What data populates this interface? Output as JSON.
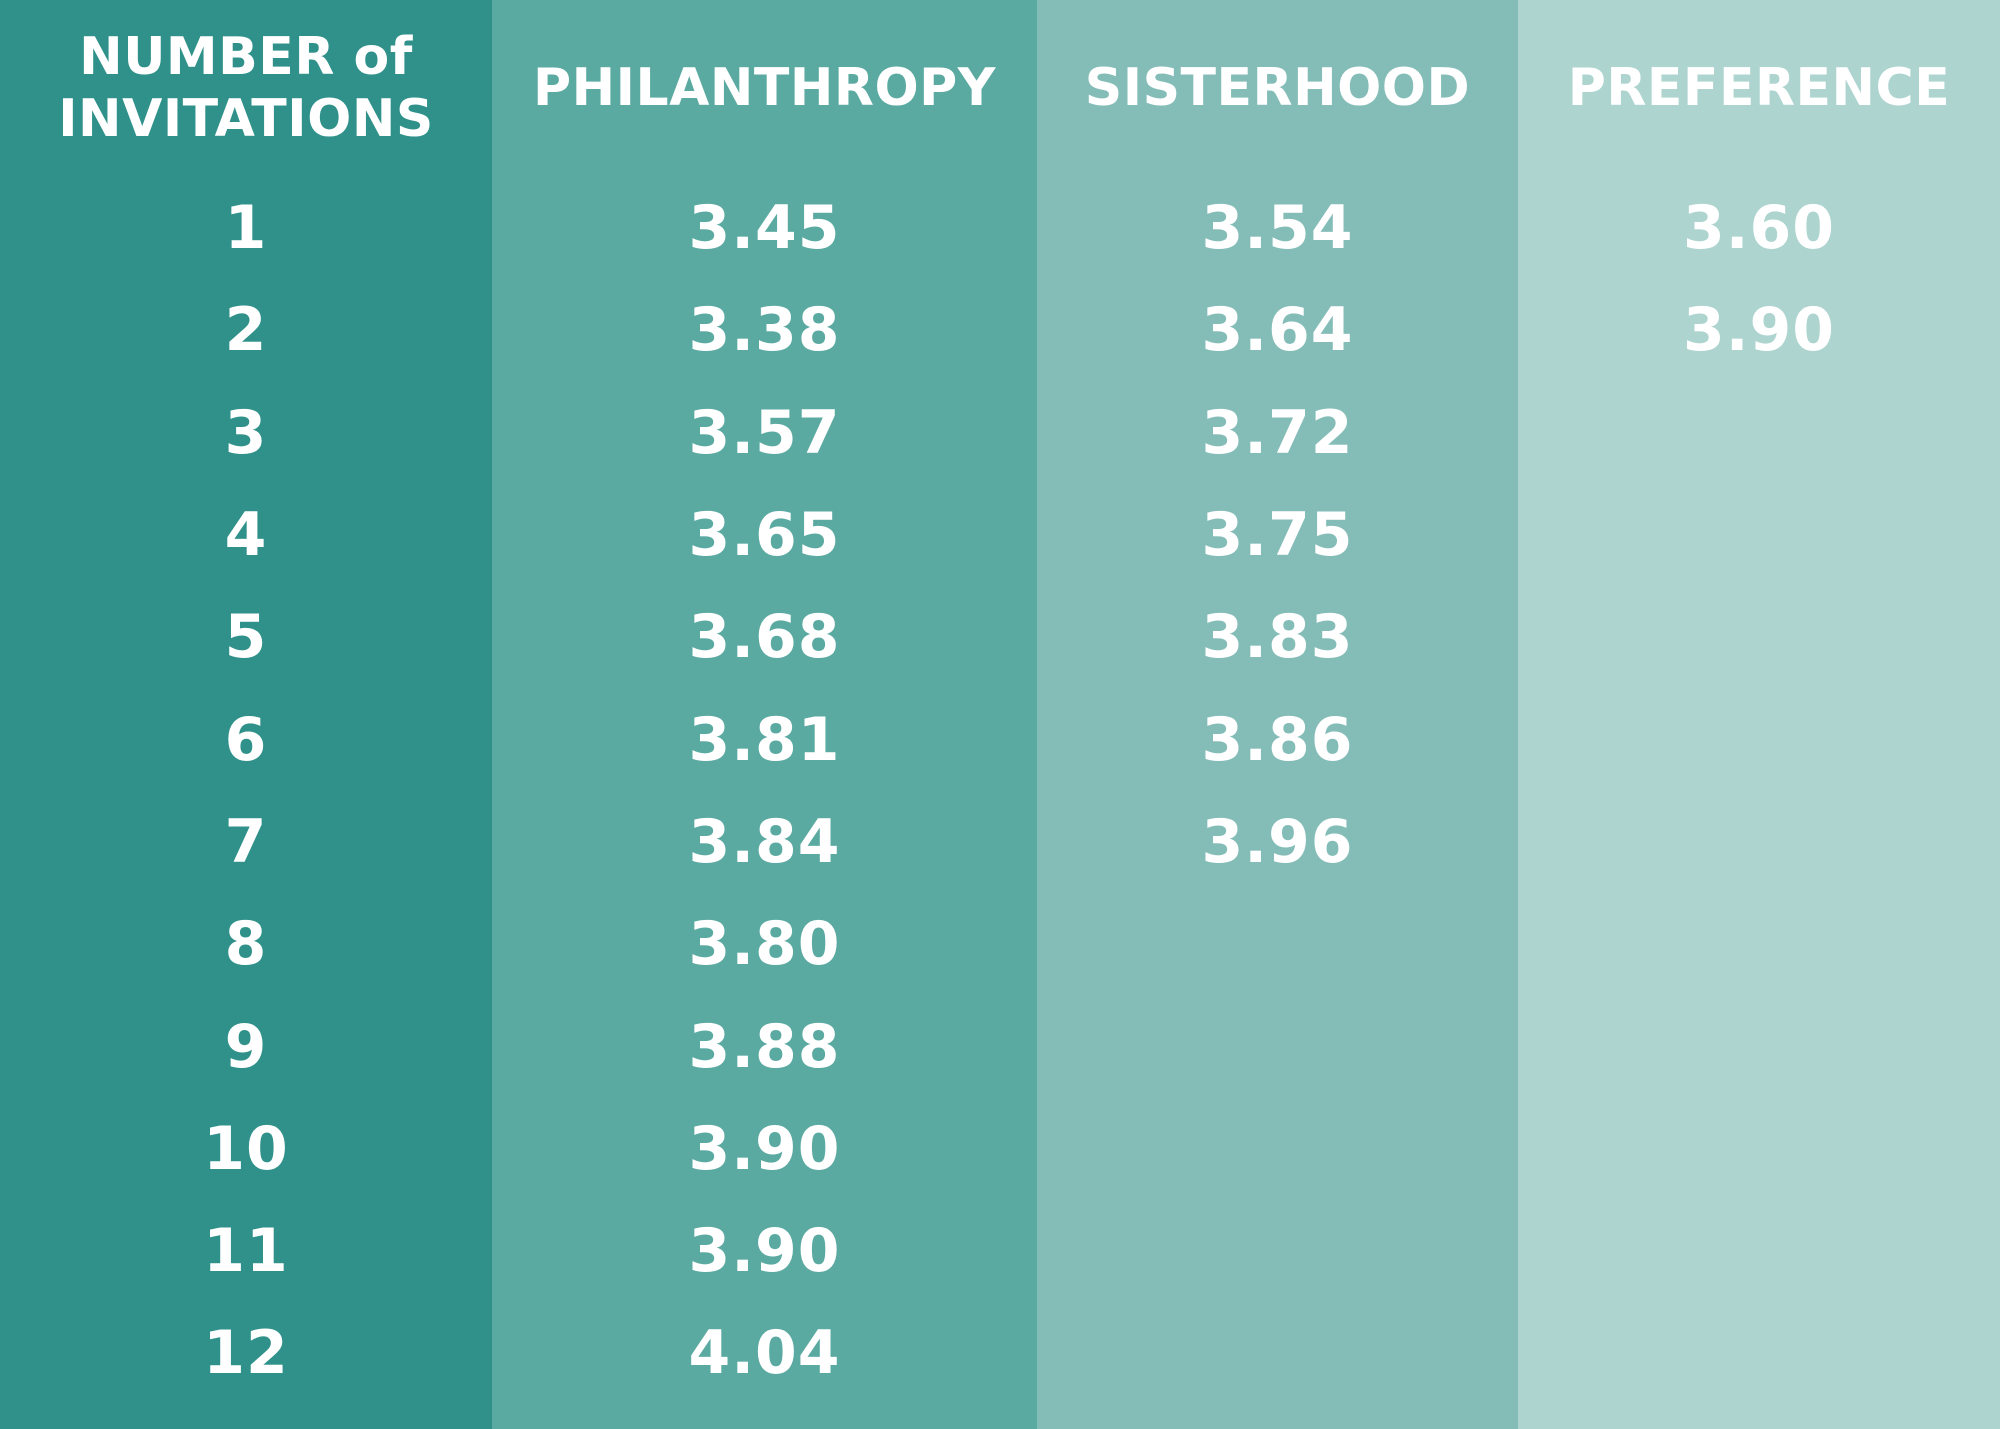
{
  "text_color": "#FFFFFF",
  "columns": [
    {
      "id": "invitations",
      "label": "NUMBER of INVITATIONS",
      "label_lines": [
        "NUMBER of",
        "INVITATIONS"
      ],
      "bg_color": "#2F918A",
      "values": [
        "1",
        "2",
        "3",
        "4",
        "5",
        "6",
        "7",
        "8",
        "9",
        "10",
        "11",
        "12"
      ]
    },
    {
      "id": "philanthropy",
      "label": "PHILANTHROPY",
      "label_lines": [
        "PHILANTHROPY"
      ],
      "bg_color": "#5BAAA2",
      "values": [
        "3.45",
        "3.38",
        "3.57",
        "3.65",
        "3.68",
        "3.81",
        "3.84",
        "3.80",
        "3.88",
        "3.90",
        "3.90",
        "4.04"
      ]
    },
    {
      "id": "sisterhood",
      "label": "SISTERHOOD",
      "label_lines": [
        "SISTERHOOD"
      ],
      "bg_color": "#84BDB8",
      "values": [
        "3.54",
        "3.64",
        "3.72",
        "3.75",
        "3.83",
        "3.86",
        "3.96",
        "",
        "",
        "",
        "",
        ""
      ]
    },
    {
      "id": "preference",
      "label": "PREFERENCE",
      "label_lines": [
        "PREFERENCE"
      ],
      "bg_color": "#ADD4CF",
      "values": [
        "3.60",
        "3.90",
        "",
        "",
        "",
        "",
        "",
        "",
        "",
        "",
        "",
        ""
      ]
    }
  ],
  "chart_data": {
    "type": "table",
    "columns": [
      "NUMBER of INVITATIONS",
      "PHILANTHROPY",
      "SISTERHOOD",
      "PREFERENCE"
    ],
    "rows": [
      [
        "1",
        "3.45",
        "3.54",
        "3.60"
      ],
      [
        "2",
        "3.38",
        "3.64",
        "3.90"
      ],
      [
        "3",
        "3.57",
        "3.72",
        ""
      ],
      [
        "4",
        "3.65",
        "3.75",
        ""
      ],
      [
        "5",
        "3.68",
        "3.83",
        ""
      ],
      [
        "6",
        "3.81",
        "3.86",
        ""
      ],
      [
        "7",
        "3.84",
        "3.96",
        ""
      ],
      [
        "8",
        "3.80",
        "",
        ""
      ],
      [
        "9",
        "3.88",
        "",
        ""
      ],
      [
        "10",
        "3.90",
        "",
        ""
      ],
      [
        "11",
        "3.90",
        "",
        ""
      ],
      [
        "12",
        "4.04",
        "",
        ""
      ]
    ],
    "layout": {
      "grid": false,
      "header_row": true,
      "column_colors": [
        "#2F918A",
        "#5BAAA2",
        "#84BDB8",
        "#ADD4CF"
      ]
    }
  }
}
